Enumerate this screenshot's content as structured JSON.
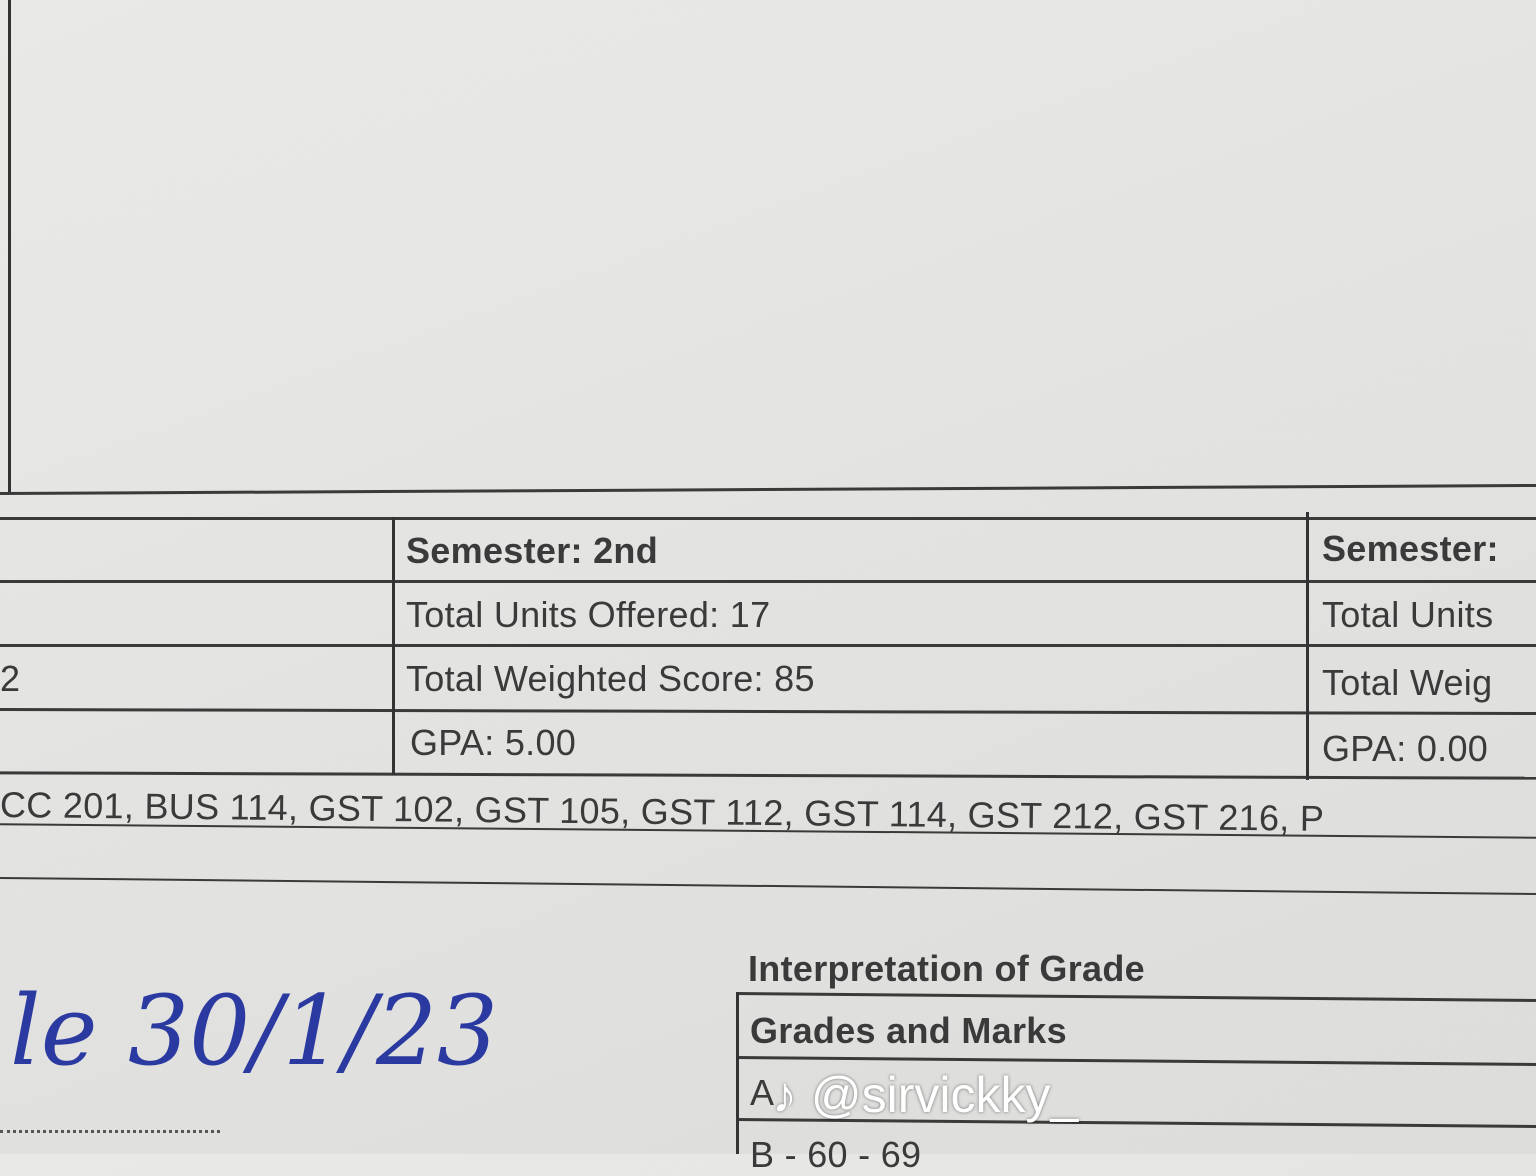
{
  "summary_table": {
    "left_partial_row_value": "2",
    "semester_2": {
      "semester": "Semester: 2nd",
      "total_units": "Total Units Offered: 17",
      "total_weighted": "Total Weighted Score: 85",
      "gpa": "GPA: 5.00"
    },
    "semester_next": {
      "semester": "Semester:",
      "total_units": "Total Units",
      "total_weighted": "Total Weig",
      "gpa": "GPA: 0.00"
    }
  },
  "courses_line": "CC 201, BUS 114, GST 102, GST 105, GST 112, GST 114, GST 212, GST 216, P",
  "signature_date": "le 30/1/23",
  "grade_interpretation": {
    "title": "Interpretation of Grade",
    "header": "Grades and Marks",
    "rows": [
      "A",
      "B - 60 - 69"
    ]
  },
  "watermark": "@sirvickky_"
}
